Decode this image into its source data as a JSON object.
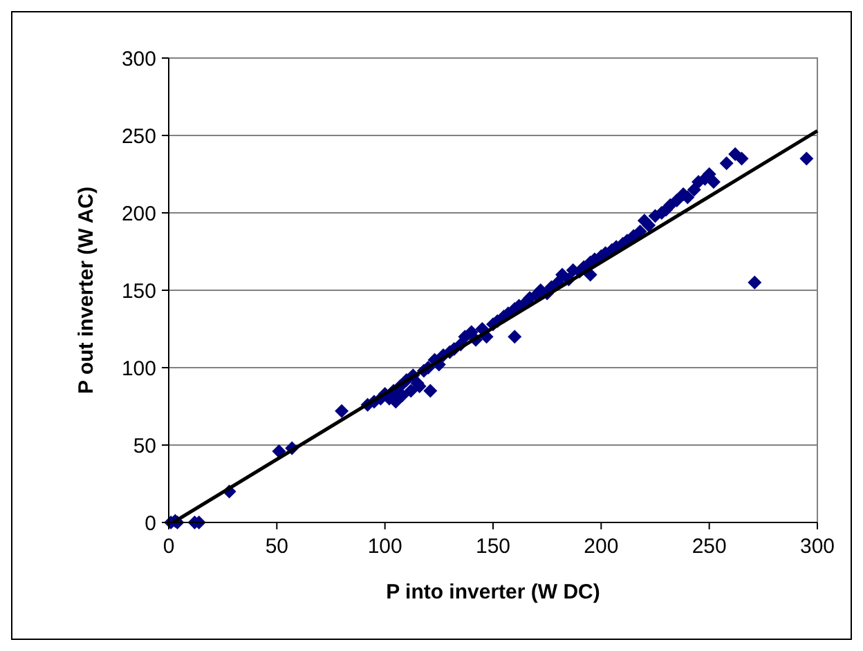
{
  "chart_data": {
    "type": "scatter",
    "xlabel": "P into inverter (W DC)",
    "ylabel": "P out inverter (W AC)",
    "xlim": [
      0,
      300
    ],
    "ylim": [
      0,
      300
    ],
    "xticks": [
      0,
      50,
      100,
      150,
      200,
      250,
      300
    ],
    "yticks": [
      0,
      50,
      100,
      150,
      200,
      250,
      300
    ],
    "grid": "y",
    "series": [
      {
        "color": "#000080",
        "marker": "diamond",
        "x": [
          1,
          3,
          4,
          12,
          14,
          28,
          51,
          57,
          80,
          92,
          95,
          98,
          100,
          102,
          104,
          105,
          107,
          108,
          110,
          112,
          113,
          115,
          116,
          118,
          120,
          121,
          123,
          125,
          127,
          130,
          132,
          135,
          137,
          140,
          142,
          145,
          147,
          150,
          152,
          155,
          157,
          160,
          160,
          162,
          165,
          167,
          170,
          172,
          175,
          177,
          180,
          182,
          185,
          187,
          190,
          192,
          195,
          195,
          197,
          200,
          202,
          205,
          207,
          210,
          212,
          215,
          218,
          220,
          222,
          225,
          228,
          230,
          232,
          235,
          238,
          240,
          243,
          245,
          248,
          250,
          252,
          258,
          262,
          265,
          271,
          295
        ],
        "values": [
          0,
          1,
          0,
          0,
          0,
          20,
          46,
          48,
          72,
          76,
          78,
          80,
          83,
          80,
          85,
          78,
          88,
          82,
          92,
          85,
          95,
          90,
          88,
          98,
          100,
          85,
          105,
          102,
          108,
          110,
          112,
          115,
          120,
          123,
          118,
          125,
          120,
          128,
          130,
          133,
          135,
          120,
          138,
          140,
          142,
          145,
          147,
          150,
          148,
          152,
          155,
          160,
          157,
          163,
          162,
          165,
          160,
          168,
          170,
          172,
          174,
          176,
          178,
          180,
          182,
          185,
          188,
          195,
          192,
          198,
          200,
          202,
          205,
          208,
          212,
          210,
          215,
          220,
          222,
          225,
          220,
          232,
          238,
          235,
          155,
          235
        ]
      },
      {
        "type": "line",
        "color": "#000000",
        "marker": "none",
        "x": [
          2,
          300
        ],
        "values": [
          0,
          253
        ]
      }
    ]
  }
}
